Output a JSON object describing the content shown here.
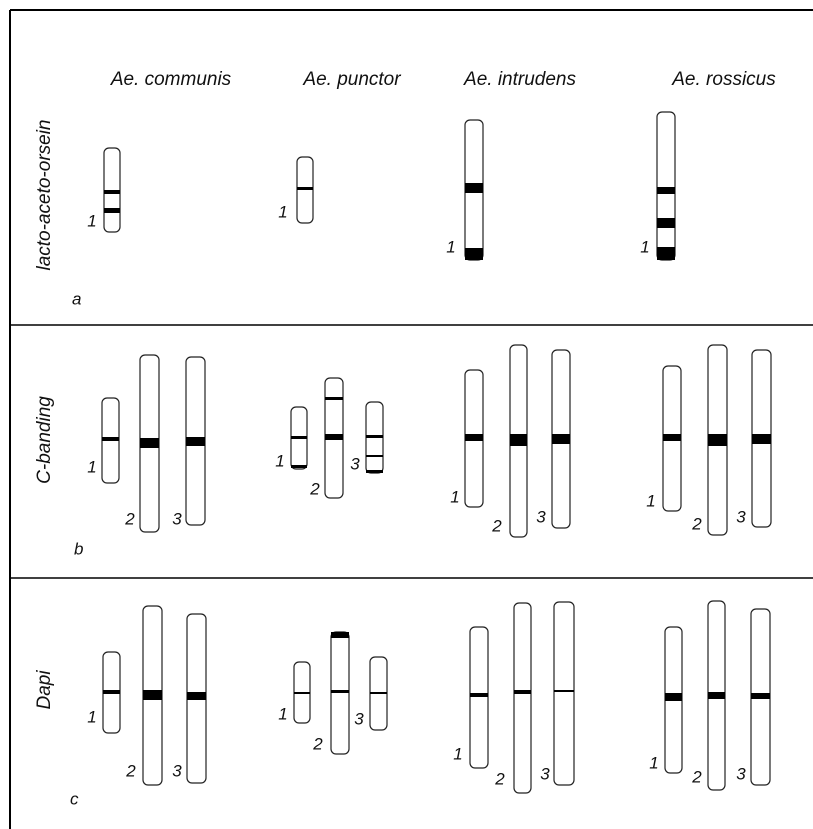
{
  "species": [
    "Ae. communis",
    "Ae. punctor",
    "Ae. intrudens",
    "Ae. rossicus"
  ],
  "rows": [
    {
      "stain": "lacto-aceto-orsein",
      "panel": "a",
      "groups": [
        [
          "1"
        ],
        [
          "1"
        ],
        [
          "1"
        ],
        [
          "1"
        ]
      ]
    },
    {
      "stain": "C-banding",
      "panel": "b",
      "groups": [
        [
          "1",
          "2",
          "3"
        ],
        [
          "1",
          "2",
          "3"
        ],
        [
          "1",
          "2",
          "3"
        ],
        [
          "1",
          "2",
          "3"
        ]
      ]
    },
    {
      "stain": "Dapi",
      "panel": "c",
      "groups": [
        [
          "1",
          "2",
          "3"
        ],
        [
          "1",
          "2",
          "3"
        ],
        [
          "1",
          "2",
          "3"
        ],
        [
          "1",
          "2",
          "3"
        ]
      ]
    }
  ]
}
